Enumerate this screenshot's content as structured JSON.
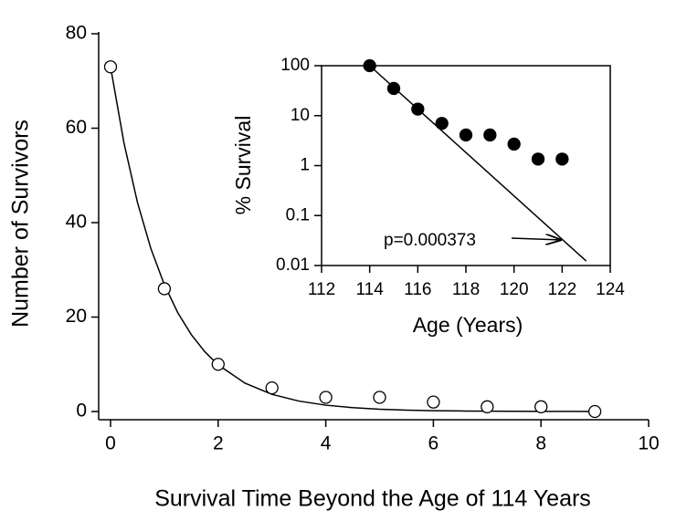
{
  "chart_data": [
    {
      "type": "scatter",
      "xlabel": "Survival Time Beyond the Age of 114 Years",
      "ylabel": "Number of Survivors",
      "x": [
        0,
        1,
        2,
        3,
        4,
        5,
        6,
        7,
        8,
        9
      ],
      "values": [
        73,
        26,
        10,
        5,
        3,
        3,
        2,
        1,
        1,
        0
      ],
      "marker": "open",
      "color": "#000000",
      "fit": {
        "x": [
          0,
          0.25,
          0.5,
          0.75,
          1,
          1.25,
          1.5,
          1.75,
          2,
          2.5,
          3,
          3.5,
          4,
          4.5,
          5,
          5.5,
          6,
          6.5,
          7,
          7.5,
          8,
          8.5,
          9,
          9.1
        ],
        "values": [
          73,
          56.85,
          44.28,
          34.48,
          26.86,
          20.92,
          16.29,
          12.69,
          9.88,
          5.99,
          3.63,
          2.21,
          1.34,
          0.81,
          0.49,
          0.3,
          0.18,
          0.11,
          0.07,
          0.04,
          0.02,
          0.015,
          0.01,
          0.008
        ]
      },
      "xlim": [
        0,
        10
      ],
      "xticks": [
        0,
        2,
        4,
        6,
        8,
        10
      ],
      "ylim": [
        0,
        80
      ],
      "yticks": [
        0,
        20,
        40,
        60,
        80
      ]
    },
    {
      "type": "scatter",
      "xlabel": "Age (Years)",
      "ylabel": "% Survival",
      "x": [
        114,
        115,
        116,
        117,
        118,
        119,
        120,
        121,
        122
      ],
      "values": [
        100,
        35,
        13.5,
        7,
        4.1,
        4.1,
        2.7,
        1.35,
        1.35
      ],
      "marker": "filled",
      "color": "#000000",
      "log_y": true,
      "fit": {
        "x": [
          114,
          123
        ],
        "values": [
          100,
          0.0123
        ]
      },
      "annotation": "p=0.000373",
      "xlim": [
        112,
        124
      ],
      "xticks": [
        112,
        114,
        116,
        118,
        120,
        122,
        124
      ],
      "ylim": [
        0.01,
        100
      ],
      "yticks": [
        0.01,
        0.1,
        1,
        10,
        100
      ]
    }
  ]
}
